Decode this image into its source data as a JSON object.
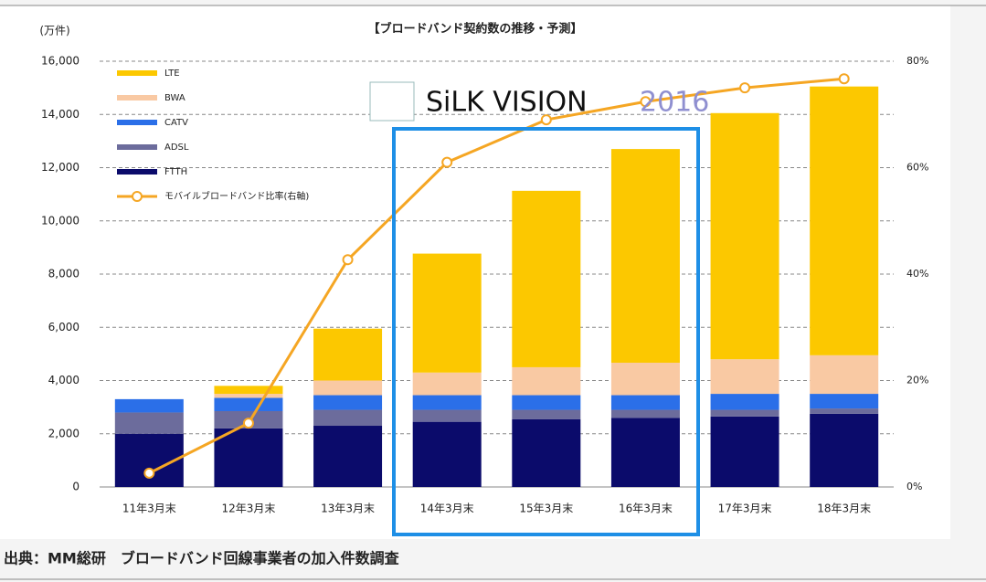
{
  "chart_data": {
    "type": "bar",
    "stacked": true,
    "title": "【ブロードバンド契約数の推移・予測】",
    "y_unit": "(万件)",
    "watermark": {
      "text": "SiLK VISION",
      "year": "2016"
    },
    "source": "出典：MM総研　ブロードバンド回線事業者の加入件数調査",
    "categories": [
      "11年3月末",
      "12年3月末",
      "13年3月末",
      "14年3月末",
      "15年3月末",
      "16年3月末",
      "17年3月末",
      "18年3月末"
    ],
    "series": [
      {
        "name": "FTTH",
        "color": "#0b0b6b",
        "values": [
          2000,
          2200,
          2300,
          2450,
          2550,
          2600,
          2650,
          2750
        ]
      },
      {
        "name": "ADSL",
        "color": "#6c6c9c",
        "values": [
          800,
          650,
          600,
          450,
          350,
          300,
          250,
          200
        ]
      },
      {
        "name": "CATV",
        "color": "#2b6fe8",
        "values": [
          500,
          500,
          550,
          550,
          550,
          550,
          600,
          550
        ]
      },
      {
        "name": "BWA",
        "color": "#f9c9a3",
        "values": [
          0,
          150,
          550,
          850,
          1050,
          1220,
          1300,
          1450
        ]
      },
      {
        "name": "LTE",
        "color": "#fcc800",
        "values": [
          0,
          300,
          1950,
          4470,
          6630,
          8030,
          9250,
          10100
        ]
      },
      {
        "name": "モバイルブロードバンド比率(右軸)",
        "color": "#f5a623",
        "type": "line",
        "axis": "y2",
        "values": [
          2.6,
          12,
          42.7,
          61,
          69,
          72.4,
          75,
          76.7
        ]
      }
    ],
    "ylim": [
      0,
      16000
    ],
    "yticks": [
      0,
      {
        "value": 2000,
        "label": "2,000"
      },
      {
        "value": 4000,
        "label": "4,000"
      },
      {
        "value": 6000,
        "label": "6,000"
      },
      {
        "value": 8000,
        "label": "8,000"
      },
      {
        "value": 10000,
        "label": "10,000"
      },
      {
        "value": 12000,
        "label": "12,000"
      },
      {
        "value": 14000,
        "label": "14,000"
      },
      {
        "value": 16000,
        "label": "16,000"
      }
    ],
    "y2lim": [
      0,
      80
    ],
    "y2ticks": [
      {
        "value": 0,
        "label": "0%"
      },
      {
        "value": 20,
        "label": "20%"
      },
      {
        "value": 40,
        "label": "40%"
      },
      {
        "value": 60,
        "label": "60%"
      },
      {
        "value": 80,
        "label": "80%"
      }
    ],
    "grid": true,
    "legend": "upper left"
  }
}
